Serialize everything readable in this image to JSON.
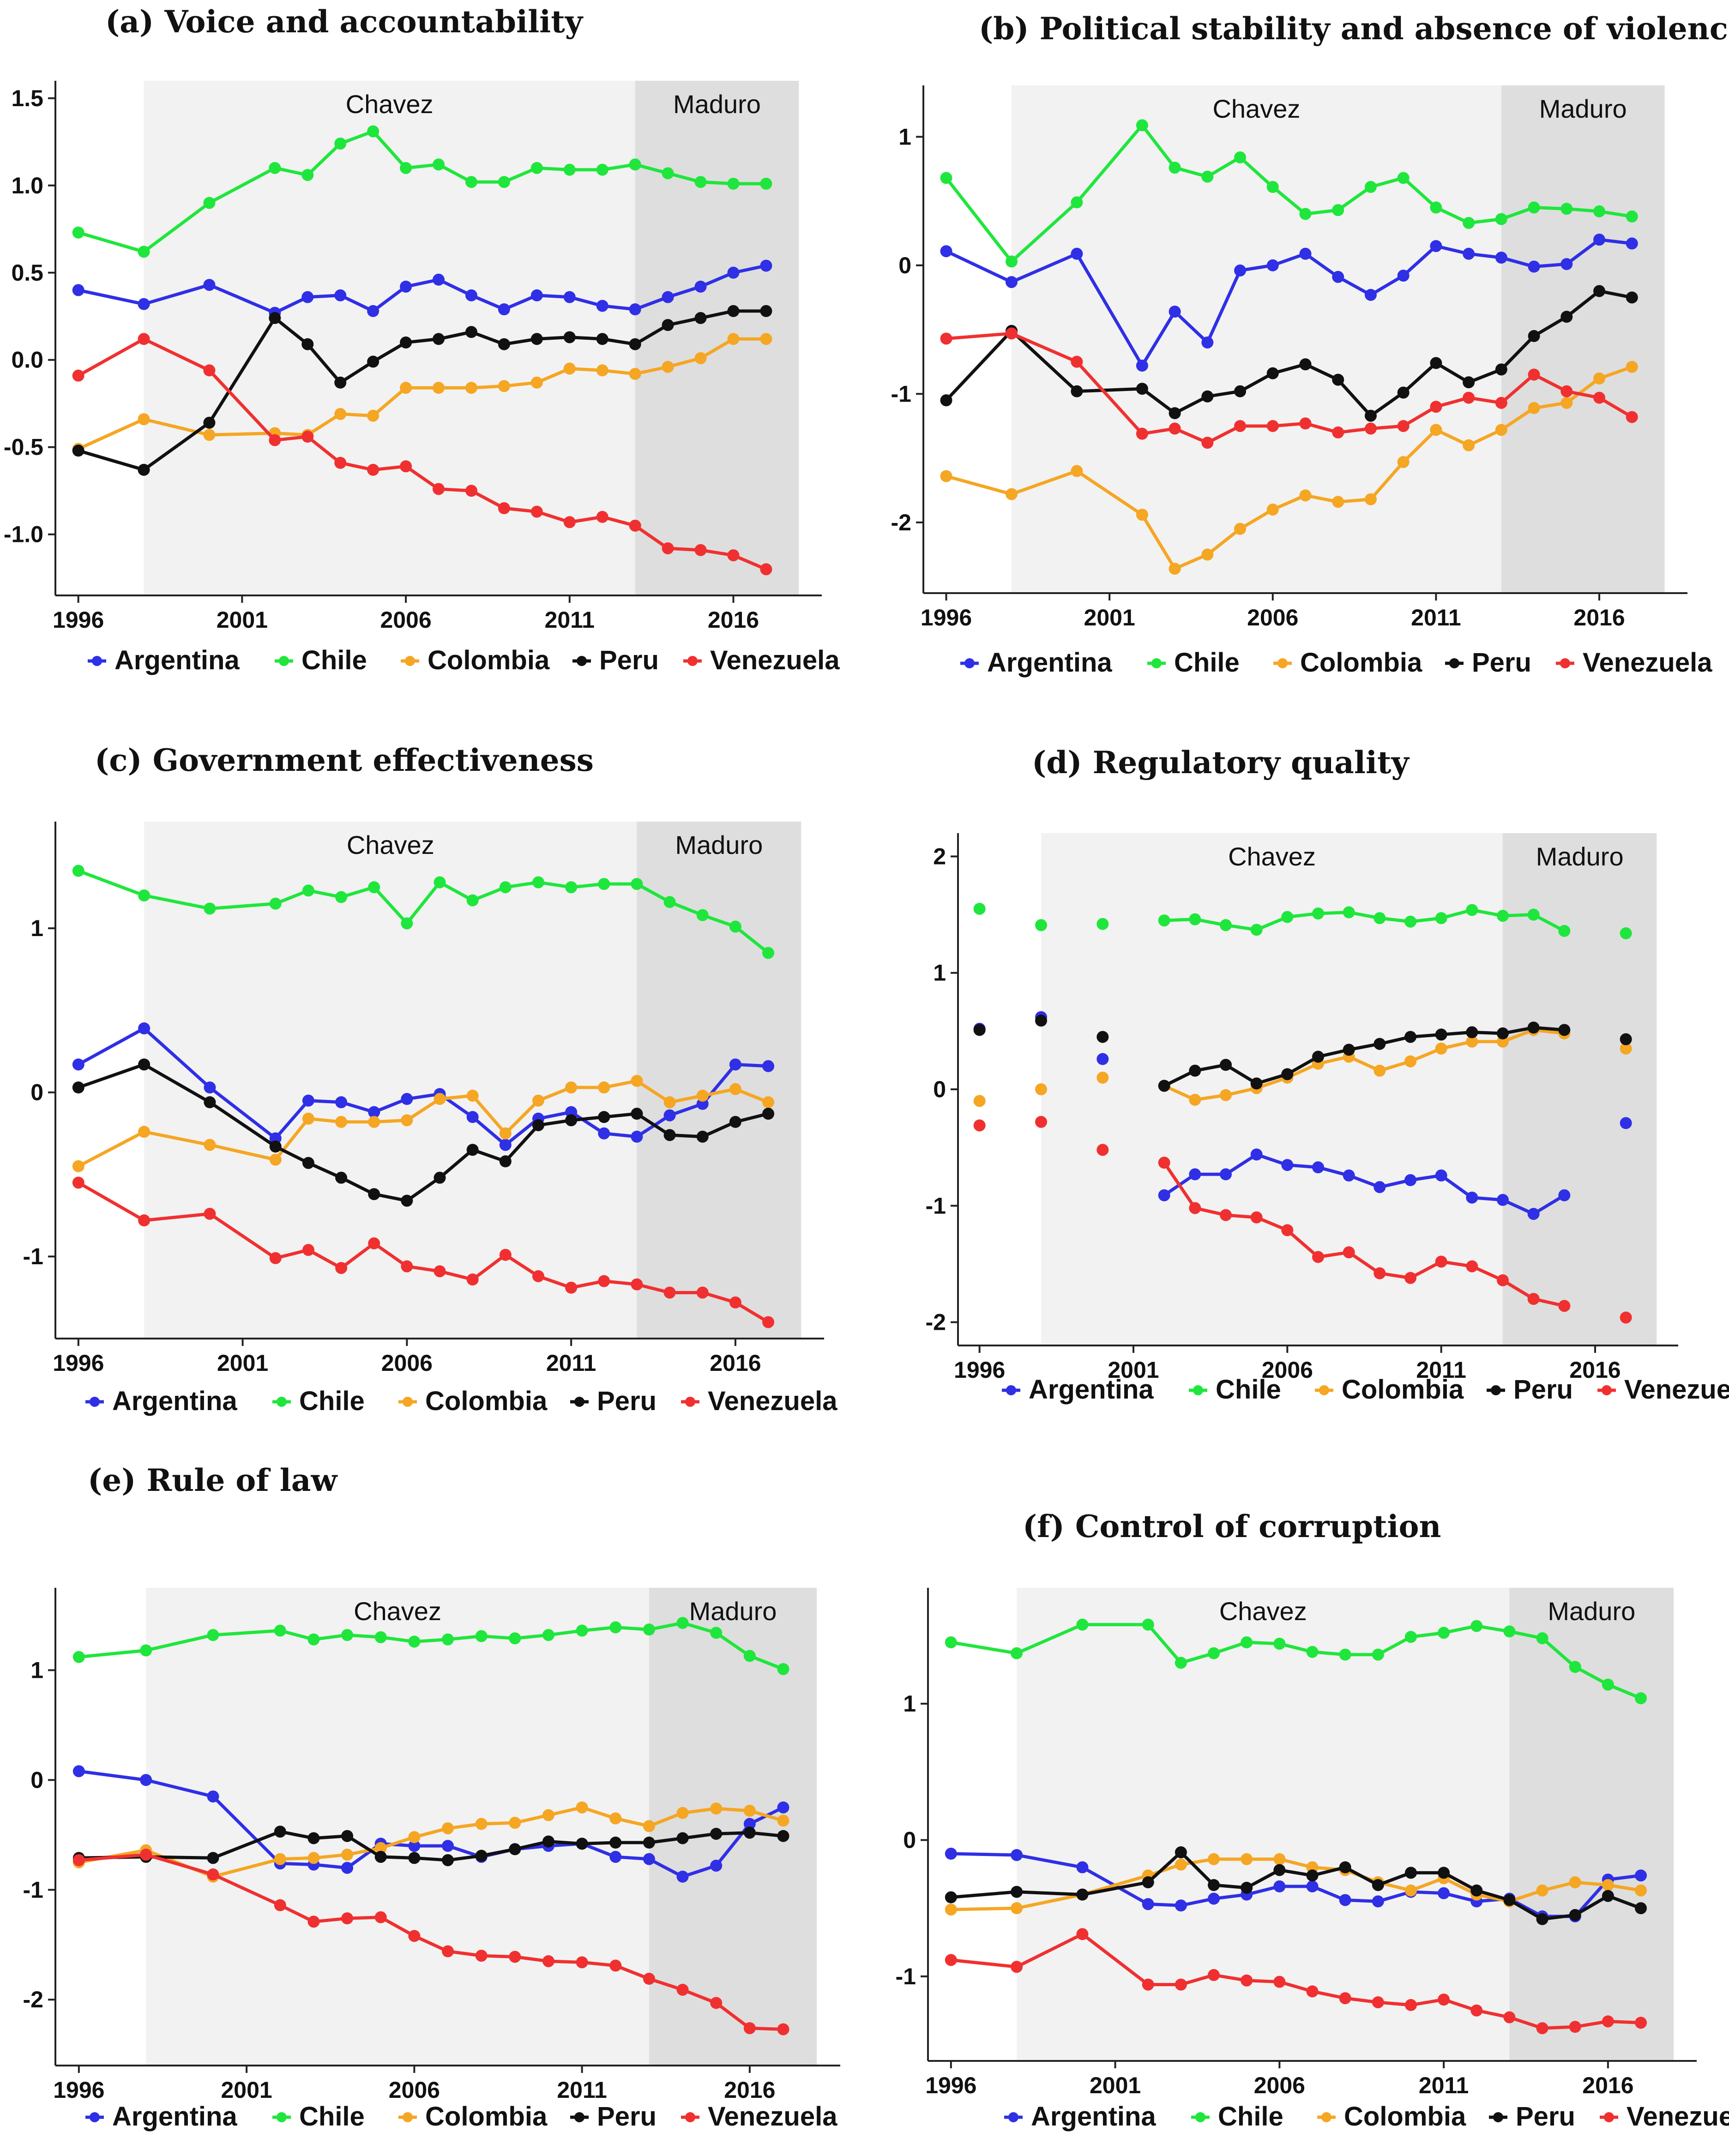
{
  "legend_series": [
    "Argentina",
    "Chile",
    "Colombia",
    "Peru",
    "Venezuela"
  ],
  "colors": {
    "Argentina": "#2f2fe6",
    "Chile": "#1fe63c",
    "Colombia": "#f5a623",
    "Peru": "#111111",
    "Venezuela": "#f03030"
  },
  "eras": [
    {
      "label": "Chavez",
      "from": 1998,
      "to": 2013
    },
    {
      "label": "Maduro",
      "from": 2013,
      "to": 2018
    }
  ],
  "chart_data": [
    {
      "type": "line",
      "title": "(a) Voice and accountability",
      "ylim": [
        -1.35,
        1.6
      ],
      "xlim": [
        1995.3,
        2018.7
      ],
      "yticks": [
        "-1.0",
        "-0.5",
        "0.0",
        "0.5",
        "1.0",
        "1.5"
      ],
      "xticks": [
        "1996",
        "2001",
        "2006",
        "2011",
        "2016"
      ],
      "x": [
        1996,
        1998,
        2000,
        2002,
        2003,
        2004,
        2005,
        2006,
        2007,
        2008,
        2009,
        2010,
        2011,
        2012,
        2013,
        2014,
        2015,
        2016,
        2017
      ],
      "series": [
        {
          "name": "Argentina",
          "values": [
            0.4,
            0.32,
            0.43,
            0.27,
            0.36,
            0.37,
            0.28,
            0.42,
            0.46,
            0.37,
            0.29,
            0.37,
            0.36,
            0.31,
            0.29,
            0.36,
            0.42,
            0.5,
            0.54
          ]
        },
        {
          "name": "Chile",
          "values": [
            0.73,
            0.62,
            0.9,
            1.1,
            1.06,
            1.24,
            1.31,
            1.1,
            1.12,
            1.02,
            1.02,
            1.1,
            1.09,
            1.09,
            1.12,
            1.07,
            1.02,
            1.01,
            1.01
          ]
        },
        {
          "name": "Colombia",
          "values": [
            -0.51,
            -0.34,
            -0.43,
            -0.42,
            -0.43,
            -0.31,
            -0.32,
            -0.16,
            -0.16,
            -0.16,
            -0.15,
            -0.13,
            -0.05,
            -0.06,
            -0.08,
            -0.04,
            0.01,
            0.12,
            0.12
          ]
        },
        {
          "name": "Peru",
          "values": [
            -0.52,
            -0.63,
            -0.36,
            0.24,
            0.09,
            -0.13,
            -0.01,
            0.1,
            0.12,
            0.16,
            0.09,
            0.12,
            0.13,
            0.12,
            0.09,
            0.2,
            0.24,
            0.28,
            0.28
          ]
        },
        {
          "name": "Venezuela",
          "values": [
            -0.09,
            0.12,
            -0.06,
            -0.46,
            -0.44,
            -0.59,
            -0.63,
            -0.61,
            -0.74,
            -0.75,
            -0.85,
            -0.87,
            -0.93,
            -0.9,
            -0.95,
            -1.08,
            -1.09,
            -1.12,
            -1.2
          ]
        }
      ]
    },
    {
      "type": "line",
      "title": "(b) Political stability and absence of violence",
      "ylim": [
        -2.55,
        1.4
      ],
      "xlim": [
        1995.3,
        2018.7
      ],
      "yticks": [
        "-2",
        "-1",
        "0",
        "1"
      ],
      "xticks": [
        "1996",
        "2001",
        "2006",
        "2011",
        "2016"
      ],
      "x": [
        1996,
        1998,
        2000,
        2002,
        2003,
        2004,
        2005,
        2006,
        2007,
        2008,
        2009,
        2010,
        2011,
        2012,
        2013,
        2014,
        2015,
        2016,
        2017
      ],
      "series": [
        {
          "name": "Argentina",
          "values": [
            0.11,
            -0.13,
            0.09,
            -0.78,
            -0.36,
            -0.6,
            -0.04,
            0.0,
            0.09,
            -0.09,
            -0.23,
            -0.08,
            0.15,
            0.09,
            0.06,
            -0.01,
            0.01,
            0.2,
            0.17
          ]
        },
        {
          "name": "Chile",
          "values": [
            0.68,
            0.03,
            0.49,
            1.09,
            0.76,
            0.69,
            0.84,
            0.61,
            0.4,
            0.43,
            0.61,
            0.68,
            0.45,
            0.33,
            0.36,
            0.45,
            0.44,
            0.42,
            0.38
          ]
        },
        {
          "name": "Colombia",
          "values": [
            -1.64,
            -1.78,
            -1.6,
            -1.94,
            -2.36,
            -2.25,
            -2.05,
            -1.9,
            -1.79,
            -1.84,
            -1.82,
            -1.53,
            -1.28,
            -1.4,
            -1.28,
            -1.11,
            -1.07,
            -0.88,
            -0.79
          ]
        },
        {
          "name": "Peru",
          "values": [
            -1.05,
            -0.51,
            -0.98,
            -0.96,
            -1.15,
            -1.02,
            -0.98,
            -0.84,
            -0.77,
            -0.89,
            -1.17,
            -0.99,
            -0.76,
            -0.91,
            -0.81,
            -0.55,
            -0.4,
            -0.2,
            -0.25
          ]
        },
        {
          "name": "Venezuela",
          "values": [
            -0.57,
            -0.53,
            -0.75,
            -1.31,
            -1.27,
            -1.38,
            -1.25,
            -1.25,
            -1.23,
            -1.3,
            -1.27,
            -1.25,
            -1.1,
            -1.03,
            -1.07,
            -0.85,
            -0.98,
            -1.03,
            -1.18
          ]
        }
      ]
    },
    {
      "type": "line",
      "title": "(c) Government effectiveness",
      "ylim": [
        -1.5,
        1.65
      ],
      "xlim": [
        1995.3,
        2018.7
      ],
      "yticks": [
        "-1",
        "0",
        "1"
      ],
      "xticks": [
        "1996",
        "2001",
        "2006",
        "2011",
        "2016"
      ],
      "x": [
        1996,
        1998,
        2000,
        2002,
        2003,
        2004,
        2005,
        2006,
        2007,
        2008,
        2009,
        2010,
        2011,
        2012,
        2013,
        2014,
        2015,
        2016,
        2017
      ],
      "series": [
        {
          "name": "Argentina",
          "values": [
            0.17,
            0.39,
            0.03,
            -0.28,
            -0.05,
            -0.06,
            -0.12,
            -0.04,
            -0.01,
            -0.15,
            -0.32,
            -0.16,
            -0.12,
            -0.25,
            -0.27,
            -0.14,
            -0.07,
            0.17,
            0.16
          ]
        },
        {
          "name": "Chile",
          "values": [
            1.35,
            1.2,
            1.12,
            1.15,
            1.23,
            1.19,
            1.25,
            1.03,
            1.28,
            1.17,
            1.25,
            1.28,
            1.25,
            1.27,
            1.27,
            1.16,
            1.08,
            1.01,
            0.85
          ]
        },
        {
          "name": "Colombia",
          "values": [
            -0.45,
            -0.24,
            -0.32,
            -0.41,
            -0.16,
            -0.18,
            -0.18,
            -0.17,
            -0.04,
            -0.02,
            -0.25,
            -0.05,
            0.03,
            0.03,
            0.07,
            -0.06,
            -0.02,
            0.02,
            -0.06
          ]
        },
        {
          "name": "Peru",
          "values": [
            0.03,
            0.17,
            -0.06,
            -0.33,
            -0.43,
            -0.52,
            -0.62,
            -0.66,
            -0.52,
            -0.35,
            -0.42,
            -0.2,
            -0.17,
            -0.15,
            -0.13,
            -0.26,
            -0.27,
            -0.18,
            -0.13
          ]
        },
        {
          "name": "Venezuela",
          "values": [
            -0.55,
            -0.78,
            -0.74,
            -1.01,
            -0.96,
            -1.07,
            -0.92,
            -1.06,
            -1.09,
            -1.14,
            -0.99,
            -1.12,
            -1.19,
            -1.15,
            -1.17,
            -1.22,
            -1.22,
            -1.28,
            -1.4
          ]
        }
      ]
    },
    {
      "type": "scatter+line",
      "title": "(d) Regulatory quality",
      "ylim": [
        -2.2,
        2.2
      ],
      "xlim": [
        1995.3,
        2018.7
      ],
      "yticks": [
        "-2",
        "-1",
        "0",
        "1",
        "2"
      ],
      "xticks": [
        "1996",
        "2001",
        "2006",
        "2011",
        "2016"
      ],
      "x": [
        1996,
        1998,
        2000,
        2002,
        2003,
        2004,
        2005,
        2006,
        2007,
        2008,
        2009,
        2010,
        2011,
        2012,
        2013,
        2014,
        2015,
        2016,
        2017
      ],
      "line_from": 2002,
      "line_to": 2015,
      "series": [
        {
          "name": "Argentina",
          "values": [
            0.52,
            0.62,
            0.26,
            -0.91,
            -0.73,
            -0.73,
            -0.56,
            -0.65,
            -0.67,
            -0.74,
            -0.84,
            -0.78,
            -0.74,
            -0.93,
            -0.95,
            -1.07,
            -0.91,
            null,
            -0.29
          ]
        },
        {
          "name": "Chile",
          "values": [
            1.55,
            1.41,
            1.42,
            1.45,
            1.46,
            1.41,
            1.37,
            1.48,
            1.51,
            1.52,
            1.47,
            1.44,
            1.47,
            1.54,
            1.49,
            1.5,
            1.36,
            null,
            1.34
          ]
        },
        {
          "name": "Colombia",
          "values": [
            -0.1,
            0.0,
            0.1,
            0.03,
            -0.09,
            -0.05,
            0.01,
            0.1,
            0.22,
            0.28,
            0.16,
            0.24,
            0.35,
            0.41,
            0.41,
            0.51,
            0.48,
            null,
            0.35
          ]
        },
        {
          "name": "Peru",
          "values": [
            0.51,
            0.59,
            0.45,
            0.03,
            0.16,
            0.21,
            0.05,
            0.13,
            0.28,
            0.34,
            0.39,
            0.45,
            0.47,
            0.49,
            0.48,
            0.53,
            0.51,
            null,
            0.43
          ]
        },
        {
          "name": "Venezuela",
          "values": [
            -0.31,
            -0.28,
            -0.52,
            -0.63,
            -1.02,
            -1.08,
            -1.1,
            -1.21,
            -1.44,
            -1.4,
            -1.58,
            -1.62,
            -1.48,
            -1.52,
            -1.64,
            -1.8,
            -1.86,
            null,
            -1.96
          ]
        }
      ]
    },
    {
      "type": "line",
      "title": "(e) Rule of law",
      "ylim": [
        -2.6,
        1.75
      ],
      "xlim": [
        1995.3,
        2018.7
      ],
      "yticks": [
        "-2",
        "-1",
        "0",
        "1"
      ],
      "xticks": [
        "1996",
        "2001",
        "2006",
        "2011",
        "2016"
      ],
      "x": [
        1996,
        1998,
        2000,
        2002,
        2003,
        2004,
        2005,
        2006,
        2007,
        2008,
        2009,
        2010,
        2011,
        2012,
        2013,
        2014,
        2015,
        2016,
        2017
      ],
      "series": [
        {
          "name": "Argentina",
          "values": [
            0.08,
            0.0,
            -0.15,
            -0.76,
            -0.77,
            -0.8,
            -0.58,
            -0.6,
            -0.6,
            -0.7,
            -0.63,
            -0.6,
            -0.58,
            -0.7,
            -0.72,
            -0.88,
            -0.78,
            -0.4,
            -0.25
          ]
        },
        {
          "name": "Chile",
          "values": [
            1.12,
            1.18,
            1.32,
            1.36,
            1.28,
            1.32,
            1.3,
            1.26,
            1.28,
            1.31,
            1.29,
            1.32,
            1.36,
            1.39,
            1.37,
            1.43,
            1.34,
            1.13,
            1.01
          ]
        },
        {
          "name": "Colombia",
          "values": [
            -0.75,
            -0.64,
            -0.88,
            -0.72,
            -0.71,
            -0.68,
            -0.62,
            -0.52,
            -0.44,
            -0.4,
            -0.39,
            -0.32,
            -0.25,
            -0.35,
            -0.42,
            -0.3,
            -0.26,
            -0.28,
            -0.37
          ]
        },
        {
          "name": "Peru",
          "values": [
            -0.71,
            -0.7,
            -0.71,
            -0.47,
            -0.53,
            -0.51,
            -0.7,
            -0.71,
            -0.73,
            -0.69,
            -0.63,
            -0.56,
            -0.58,
            -0.57,
            -0.57,
            -0.53,
            -0.49,
            -0.48,
            -0.51
          ]
        },
        {
          "name": "Venezuela",
          "values": [
            -0.73,
            -0.68,
            -0.86,
            -1.14,
            -1.29,
            -1.26,
            -1.25,
            -1.42,
            -1.56,
            -1.6,
            -1.61,
            -1.65,
            -1.66,
            -1.69,
            -1.81,
            -1.91,
            -2.03,
            -2.26,
            -2.27
          ]
        }
      ]
    },
    {
      "type": "line",
      "title": "(f) Control of corruption",
      "ylim": [
        -1.62,
        1.85
      ],
      "xlim": [
        1995.3,
        2018.7
      ],
      "yticks": [
        "-1",
        "0",
        "1"
      ],
      "xticks": [
        "1996",
        "2001",
        "2006",
        "2011",
        "2016"
      ],
      "x": [
        1996,
        1998,
        2000,
        2002,
        2003,
        2004,
        2005,
        2006,
        2007,
        2008,
        2009,
        2010,
        2011,
        2012,
        2013,
        2014,
        2015,
        2016,
        2017
      ],
      "series": [
        {
          "name": "Argentina",
          "values": [
            -0.1,
            -0.11,
            -0.2,
            -0.47,
            -0.48,
            -0.43,
            -0.4,
            -0.34,
            -0.34,
            -0.44,
            -0.45,
            -0.38,
            -0.39,
            -0.45,
            -0.43,
            -0.56,
            -0.56,
            -0.29,
            -0.26
          ]
        },
        {
          "name": "Chile",
          "values": [
            1.45,
            1.37,
            1.58,
            1.58,
            1.3,
            1.37,
            1.45,
            1.44,
            1.38,
            1.36,
            1.36,
            1.49,
            1.52,
            1.57,
            1.53,
            1.48,
            1.27,
            1.14,
            1.04
          ]
        },
        {
          "name": "Colombia",
          "values": [
            -0.51,
            -0.5,
            -0.4,
            -0.26,
            -0.18,
            -0.14,
            -0.14,
            -0.14,
            -0.2,
            -0.22,
            -0.31,
            -0.37,
            -0.28,
            -0.4,
            -0.45,
            -0.37,
            -0.31,
            -0.33,
            -0.37
          ]
        },
        {
          "name": "Peru",
          "values": [
            -0.42,
            -0.38,
            -0.4,
            -0.31,
            -0.09,
            -0.33,
            -0.35,
            -0.22,
            -0.26,
            -0.2,
            -0.33,
            -0.24,
            -0.24,
            -0.37,
            -0.44,
            -0.58,
            -0.55,
            -0.41,
            -0.5
          ]
        },
        {
          "name": "Venezuela",
          "values": [
            -0.88,
            -0.93,
            -0.69,
            -1.06,
            -1.06,
            -0.99,
            -1.03,
            -1.04,
            -1.11,
            -1.16,
            -1.19,
            -1.21,
            -1.17,
            -1.25,
            -1.3,
            -1.38,
            -1.37,
            -1.33,
            -1.34
          ]
        }
      ]
    }
  ]
}
